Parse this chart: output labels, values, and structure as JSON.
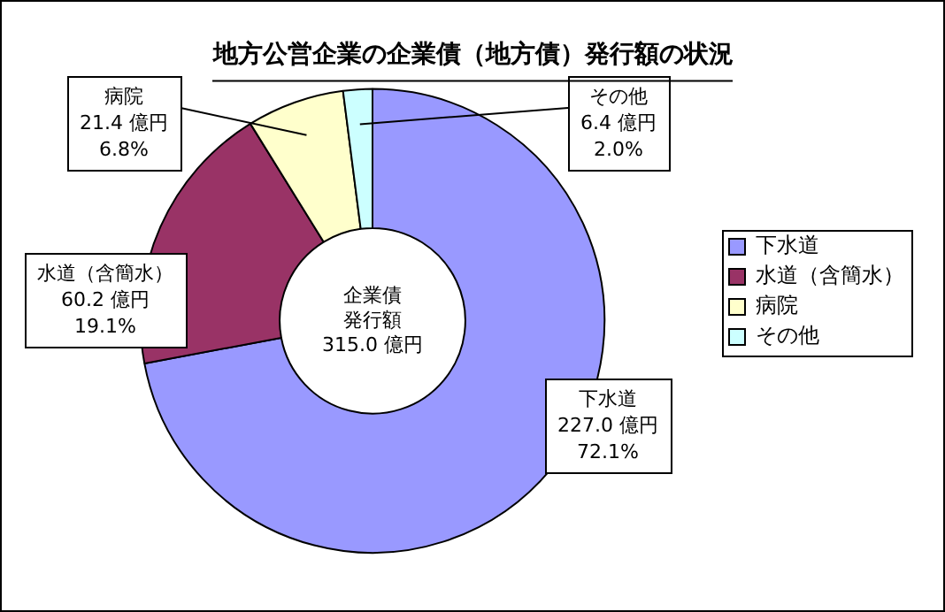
{
  "chart_data": {
    "type": "donut",
    "title": "地方公営企業の企業債（地方債）発行額の状況",
    "categories": [
      "下水道",
      "水道（含簡水）",
      "病院",
      "その他"
    ],
    "values": [
      227.0,
      60.2,
      21.4,
      6.4
    ],
    "colors": [
      "#9999ff",
      "#993366",
      "#ffffcc",
      "#ccffff"
    ],
    "value_labels": [
      "227.0 億円\n72.1%",
      "60.2 億円\n19.1%",
      "21.4 億円\n6.8%",
      "6.4 億円\n2.0%"
    ],
    "annotations": [
      "企業債発行額",
      "315.0 億円"
    ],
    "legend": "right"
  }
}
